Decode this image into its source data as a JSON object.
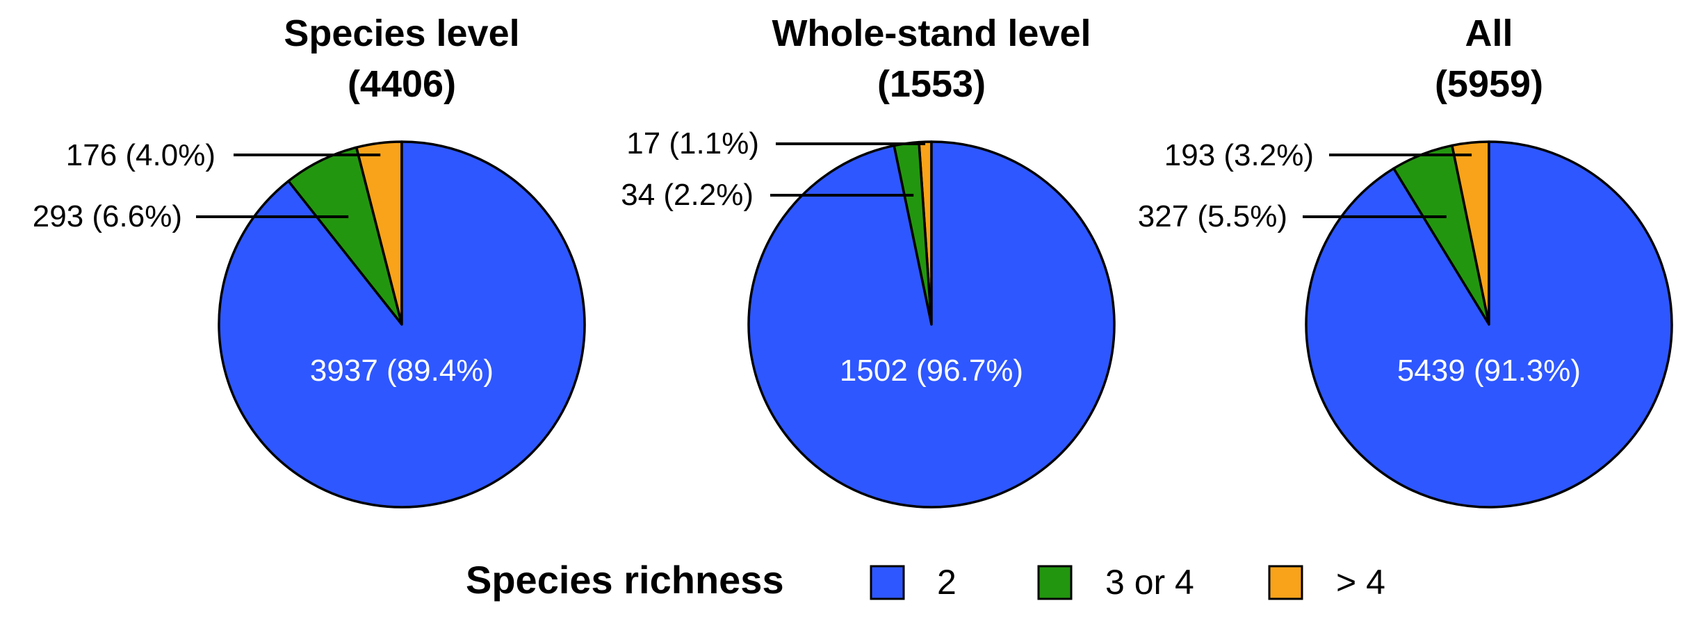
{
  "colors": {
    "two": "#2e57ff",
    "three_or_four": "#23960f",
    "more_than_four": "#f9a31a",
    "outline": "#000000",
    "inside_text": "#ffffff"
  },
  "chart_data": [
    {
      "type": "pie",
      "title": "Species level",
      "subtitle": "(4406)",
      "total": 4406,
      "slices": [
        {
          "category": "2",
          "count": 3937,
          "label": "3937 (89.4%)"
        },
        {
          "category": "3 or 4",
          "count": 293,
          "label": "293 (6.6%)"
        },
        {
          "category": "> 4",
          "count": 176,
          "label": "176 (4.0%)"
        }
      ]
    },
    {
      "type": "pie",
      "title": "Whole-stand level",
      "subtitle": "(1553)",
      "total": 1553,
      "slices": [
        {
          "category": "2",
          "count": 1502,
          "label": "1502 (96.7%)"
        },
        {
          "category": "3 or 4",
          "count": 34,
          "label": "34 (2.2%)"
        },
        {
          "category": "> 4",
          "count": 17,
          "label": "17 (1.1%)"
        }
      ]
    },
    {
      "type": "pie",
      "title": "All",
      "subtitle": "(5959)",
      "total": 5959,
      "slices": [
        {
          "category": "2",
          "count": 5439,
          "label": "5439 (91.3%)"
        },
        {
          "category": "3 or 4",
          "count": 327,
          "label": "327 (5.5%)"
        },
        {
          "category": "> 4",
          "count": 193,
          "label": "193 (3.2%)"
        }
      ]
    }
  ],
  "legend": {
    "title": "Species richness",
    "placement": "bottom-center",
    "items": [
      {
        "label": "2",
        "color_key": "two"
      },
      {
        "label": "3 or 4",
        "color_key": "three_or_four"
      },
      {
        "label": "> 4",
        "color_key": "more_than_four"
      }
    ]
  }
}
